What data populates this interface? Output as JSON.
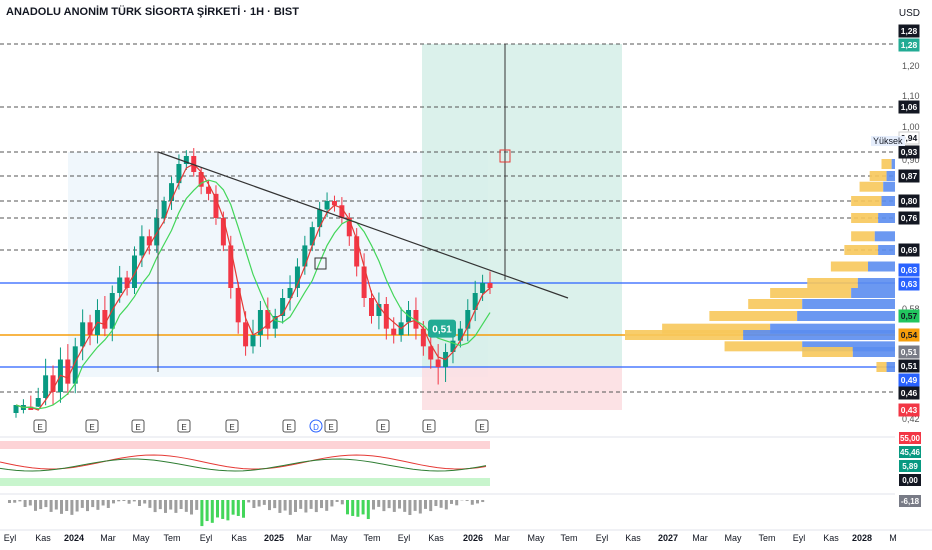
{
  "header": {
    "title": "ANADOLU ANONİM TÜRK SİGORTA ŞİRKETİ · 1H · BIST",
    "currency": "USD",
    "volume_profile_high_label": "Yüksek"
  },
  "chart_data": {
    "type": "candlestick",
    "symbol": "ANADOLU ANONİM TÜRK SİGORTA ŞİRKETİ",
    "timeframe": "1H",
    "exchange": "BIST",
    "currency": "USD",
    "x_axis_labels": [
      "Eyl",
      "Kas",
      "2024",
      "Mar",
      "May",
      "Tem",
      "Eyl",
      "Kas",
      "2025",
      "Mar",
      "May",
      "Tem",
      "Eyl",
      "Kas",
      "2026",
      "Mar",
      "May",
      "Tem",
      "Eyl",
      "Kas",
      "2027",
      "Mar",
      "May",
      "Tem",
      "Eyl",
      "Kas",
      "2028",
      "M"
    ],
    "price_scale_ticks": [
      "1,20",
      "1,10",
      "1,00",
      "0,90",
      "0,80",
      "0,70",
      "0,58",
      "0,42"
    ],
    "price_tags": [
      {
        "text": "1,28",
        "bg": "#131722",
        "fg": "#ffffff"
      },
      {
        "text": "1,28",
        "bg": "#22ab94",
        "fg": "#ffffff"
      },
      {
        "text": "1,06",
        "bg": "#131722",
        "fg": "#ffffff"
      },
      {
        "text": "0,94",
        "bg": "#ffffff",
        "fg": "#131722"
      },
      {
        "text": "0,93",
        "bg": "#131722",
        "fg": "#ffffff"
      },
      {
        "text": "0,87",
        "bg": "#131722",
        "fg": "#ffffff"
      },
      {
        "text": "0,80",
        "bg": "#131722",
        "fg": "#ffffff"
      },
      {
        "text": "0,76",
        "bg": "#131722",
        "fg": "#ffffff"
      },
      {
        "text": "0,69",
        "bg": "#131722",
        "fg": "#ffffff"
      },
      {
        "text": "0,63",
        "bg": "#2962ff",
        "fg": "#ffffff"
      },
      {
        "text": "0,63",
        "bg": "#2962ff",
        "fg": "#ffffff"
      },
      {
        "text": "0,57",
        "bg": "#22c55e",
        "fg": "#131722"
      },
      {
        "text": "0,54",
        "bg": "#f59e0b",
        "fg": "#131722"
      },
      {
        "text": "0,51",
        "bg": "#787b86",
        "fg": "#ffffff"
      },
      {
        "text": "0,51",
        "bg": "#131722",
        "fg": "#ffffff"
      },
      {
        "text": "0,49",
        "bg": "#2962ff",
        "fg": "#ffffff"
      },
      {
        "text": "0,46",
        "bg": "#131722",
        "fg": "#ffffff"
      },
      {
        "text": "0,43",
        "bg": "#f23645",
        "fg": "#ffffff"
      }
    ],
    "osc_tags": [
      {
        "text": "55,00",
        "bg": "#f23645",
        "fg": "#ffffff"
      },
      {
        "text": "45,46",
        "bg": "#089981",
        "fg": "#ffffff"
      },
      {
        "text": "5,89",
        "bg": "#089981",
        "fg": "#ffffff"
      },
      {
        "text": "0,00",
        "bg": "#131722",
        "fg": "#ffffff"
      },
      {
        "text": "-6,18",
        "bg": "#787b86",
        "fg": "#ffffff"
      }
    ],
    "horizontal_levels": [
      1.28,
      1.06,
      0.93,
      0.87,
      0.8,
      0.76,
      0.69,
      0.46
    ],
    "support_resistance": {
      "upper_blue": 0.63,
      "orange": 0.54,
      "lower_blue": 0.49
    },
    "position_tool": {
      "entry": 0.49,
      "target": 1.28,
      "stop": 0.43
    },
    "trendline": {
      "from": 0.93,
      "to": 0.6
    },
    "price_callout": "0,51",
    "event_markers": [
      "E",
      "E",
      "E",
      "E",
      "E",
      "E",
      "D",
      "E",
      "E",
      "E",
      "E"
    ],
    "price_series": [
      0.4,
      0.43,
      0.41,
      0.45,
      0.48,
      0.46,
      0.5,
      0.47,
      0.52,
      0.56,
      0.54,
      0.58,
      0.55,
      0.61,
      0.64,
      0.62,
      0.68,
      0.72,
      0.7,
      0.76,
      0.8,
      0.85,
      0.9,
      0.92,
      0.88,
      0.84,
      0.82,
      0.76,
      0.7,
      0.62,
      0.56,
      0.52,
      0.54,
      0.58,
      0.55,
      0.57,
      0.6,
      0.62,
      0.66,
      0.7,
      0.74,
      0.78,
      0.8,
      0.79,
      0.76,
      0.72,
      0.66,
      0.6,
      0.57,
      0.59,
      0.55,
      0.54,
      0.56,
      0.58,
      0.55,
      0.52,
      0.5,
      0.49,
      0.51,
      0.53,
      0.55,
      0.58,
      0.61,
      0.63,
      0.62
    ],
    "volume_profile": [
      {
        "price": 0.9,
        "buy": 0.06,
        "sell": 0.02
      },
      {
        "price": 0.87,
        "buy": 0.1,
        "sell": 0.05
      },
      {
        "price": 0.84,
        "buy": 0.14,
        "sell": 0.07
      },
      {
        "price": 0.8,
        "buy": 0.18,
        "sell": 0.08
      },
      {
        "price": 0.76,
        "buy": 0.16,
        "sell": 0.1
      },
      {
        "price": 0.72,
        "buy": 0.14,
        "sell": 0.12
      },
      {
        "price": 0.69,
        "buy": 0.2,
        "sell": 0.1
      },
      {
        "price": 0.66,
        "buy": 0.22,
        "sell": 0.16
      },
      {
        "price": 0.63,
        "buy": 0.3,
        "sell": 0.22
      },
      {
        "price": 0.61,
        "buy": 0.48,
        "sell": 0.26
      },
      {
        "price": 0.59,
        "buy": 0.32,
        "sell": 0.55
      },
      {
        "price": 0.57,
        "buy": 0.52,
        "sell": 0.58
      },
      {
        "price": 0.55,
        "buy": 0.64,
        "sell": 0.74
      },
      {
        "price": 0.54,
        "buy": 0.7,
        "sell": 0.9
      },
      {
        "price": 0.52,
        "buy": 0.46,
        "sell": 0.55
      },
      {
        "price": 0.51,
        "buy": 0.3,
        "sell": 0.25
      },
      {
        "price": 0.49,
        "buy": 0.06,
        "sell": 0.05
      }
    ],
    "rsi": {
      "value": 45.46,
      "upper": 55.0,
      "lower": 0.0
    },
    "histogram_last": -6.18,
    "colors": {
      "up": "#089981",
      "down": "#f23645",
      "ma_fast": "#e53935",
      "ma_slow": "#43d65a",
      "level_blue": "#2962ff",
      "level_orange": "#f59e0b",
      "target_zone": "#d5efe7",
      "stop_zone": "#fbdde0"
    }
  }
}
